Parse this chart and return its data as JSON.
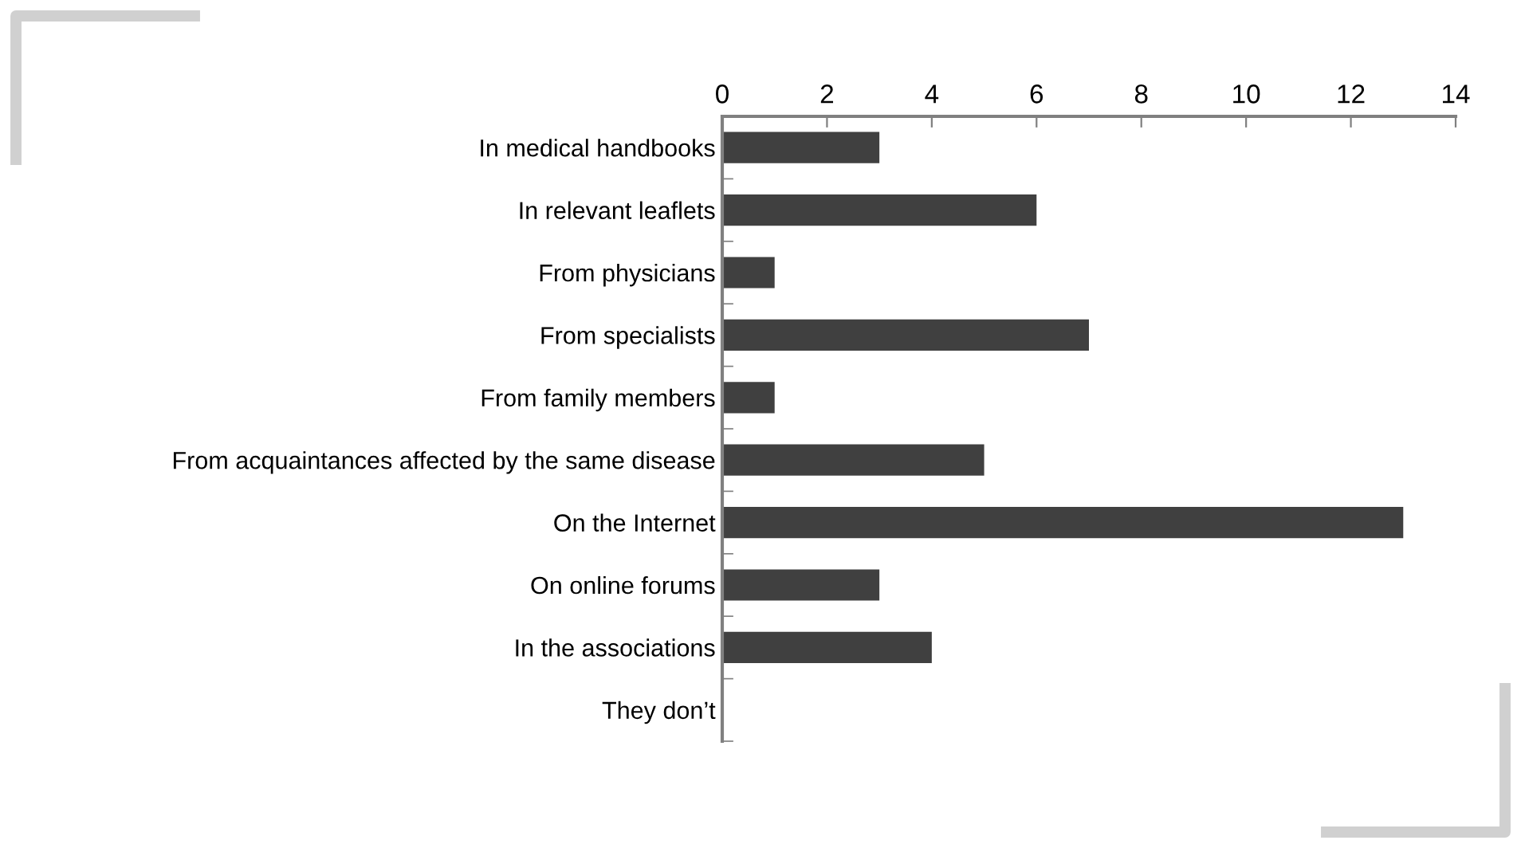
{
  "chart_data": {
    "type": "bar",
    "orientation": "horizontal",
    "categories": [
      "In medical handbooks",
      "In relevant leaflets",
      "From physicians",
      "From specialists",
      "From family members",
      "From acquaintances affected by the same disease",
      "On the Internet",
      "On online forums",
      "In the associations",
      "They don’t"
    ],
    "values": [
      3,
      6,
      1,
      7,
      1,
      5,
      13,
      3,
      4,
      0
    ],
    "color": "#404040",
    "xlim": [
      0,
      14
    ],
    "xticks": [
      0,
      2,
      4,
      6,
      8,
      10,
      12,
      14
    ],
    "grid": false,
    "legend": false
  }
}
